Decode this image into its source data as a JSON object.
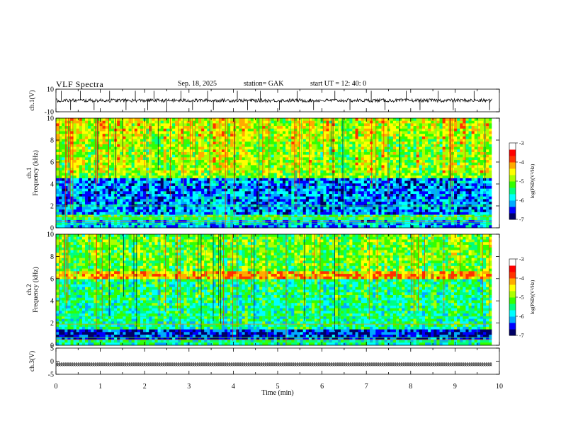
{
  "header": {
    "title": "VLF  Spectra",
    "date": "Sep. 18, 2025",
    "station": "station= GAK",
    "start": "start  UT  =    12: 40: 0"
  },
  "chart_data": [
    {
      "type": "line",
      "name": "ch1-waveform",
      "ylabel": "ch.1(V)",
      "ylim": [
        -10,
        10
      ],
      "yticks": [
        10,
        -10
      ],
      "xlim": [
        0,
        10
      ],
      "baseline": 0,
      "spikes": [
        0.12,
        0.33,
        0.55,
        0.86,
        1.21,
        1.58,
        1.79,
        2.07,
        2.21,
        2.5,
        2.82,
        3.08,
        3.42,
        3.55,
        4.09,
        4.32,
        4.61,
        5.04,
        5.44,
        5.81,
        6.29,
        6.63,
        7.11,
        7.42,
        7.9,
        8.21,
        8.62,
        8.96,
        9.43,
        9.78
      ]
    },
    {
      "type": "heatmap",
      "name": "ch1-spectrogram",
      "ylabel": "ch.1\nFrequency  (kHz)",
      "ylim": [
        0,
        10
      ],
      "yticks": [
        0,
        2,
        4,
        6,
        8,
        10
      ],
      "xlim": [
        0,
        10
      ],
      "colorbar": {
        "label": "log(PSD)(V²/Hz)",
        "range": [
          -7,
          -3
        ],
        "ticks": [
          -3,
          -4,
          -5,
          -6,
          -7
        ]
      }
    },
    {
      "type": "heatmap",
      "name": "ch2-spectrogram",
      "ylabel": "ch.2\nFrequency  (kHz)",
      "ylim": [
        0,
        10
      ],
      "yticks": [
        0,
        2,
        4,
        6,
        8,
        10
      ],
      "xlim": [
        0,
        10
      ],
      "colorbar": {
        "label": "log(PSD)(V²/Hz)",
        "range": [
          -7,
          -3
        ],
        "ticks": [
          -3,
          -4,
          -5,
          -6,
          -7
        ]
      }
    },
    {
      "type": "line",
      "name": "ch3-waveform",
      "ylabel": "ch.3(V)",
      "ylim": [
        -5,
        5
      ],
      "yticks": [
        5,
        0,
        -5
      ],
      "xlim": [
        0,
        10
      ],
      "baseline": -1.2
    }
  ],
  "xaxis": {
    "label": "Time  (min)",
    "ticks": [
      0,
      1,
      2,
      3,
      4,
      5,
      6,
      7,
      8,
      9,
      10
    ]
  },
  "colors": {
    "scale": [
      "#000066",
      "#0000ff",
      "#00aaff",
      "#00ffff",
      "#00ff80",
      "#33ff00",
      "#aaff00",
      "#ffff00",
      "#ffaa00",
      "#ff3300",
      "#ff0000",
      "#ffffff"
    ]
  }
}
